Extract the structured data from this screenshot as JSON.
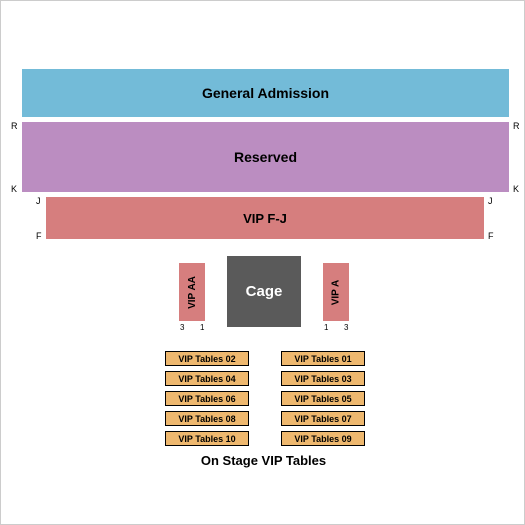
{
  "chart": {
    "type": "seating-map",
    "background_color": "#ffffff",
    "border_color": "#cccccc"
  },
  "sections": {
    "general_admission": {
      "label": "General Admission",
      "fill": "#73bbd8",
      "text_color": "#000000"
    },
    "reserved": {
      "label": "Reserved",
      "fill": "#bb8dc1",
      "text_color": "#000000",
      "row_top": "R",
      "row_bottom": "K"
    },
    "vip_fj": {
      "label": "VIP F-J",
      "fill": "#d67e7e",
      "text_color": "#000000",
      "row_top": "J",
      "row_bottom": "F"
    },
    "vip_aa": {
      "label": "VIP AA",
      "fill": "#d67e7e",
      "seat_left": "3",
      "seat_right": "1"
    },
    "vip_a": {
      "label": "VIP A",
      "fill": "#d67e7e",
      "seat_left": "1",
      "seat_right": "3"
    },
    "cage": {
      "label": "Cage",
      "fill": "#5a5a5a",
      "text_color": "#ffffff"
    }
  },
  "vip_tables": {
    "fill": "#eeb86f",
    "text_color": "#000000",
    "left_col": [
      "VIP Tables 02",
      "VIP Tables 04",
      "VIP Tables 06",
      "VIP Tables 08",
      "VIP Tables 10"
    ],
    "right_col": [
      "VIP Tables 01",
      "VIP Tables 03",
      "VIP Tables 05",
      "VIP Tables 07",
      "VIP Tables 09"
    ]
  },
  "footer": {
    "label": "On Stage VIP Tables"
  }
}
